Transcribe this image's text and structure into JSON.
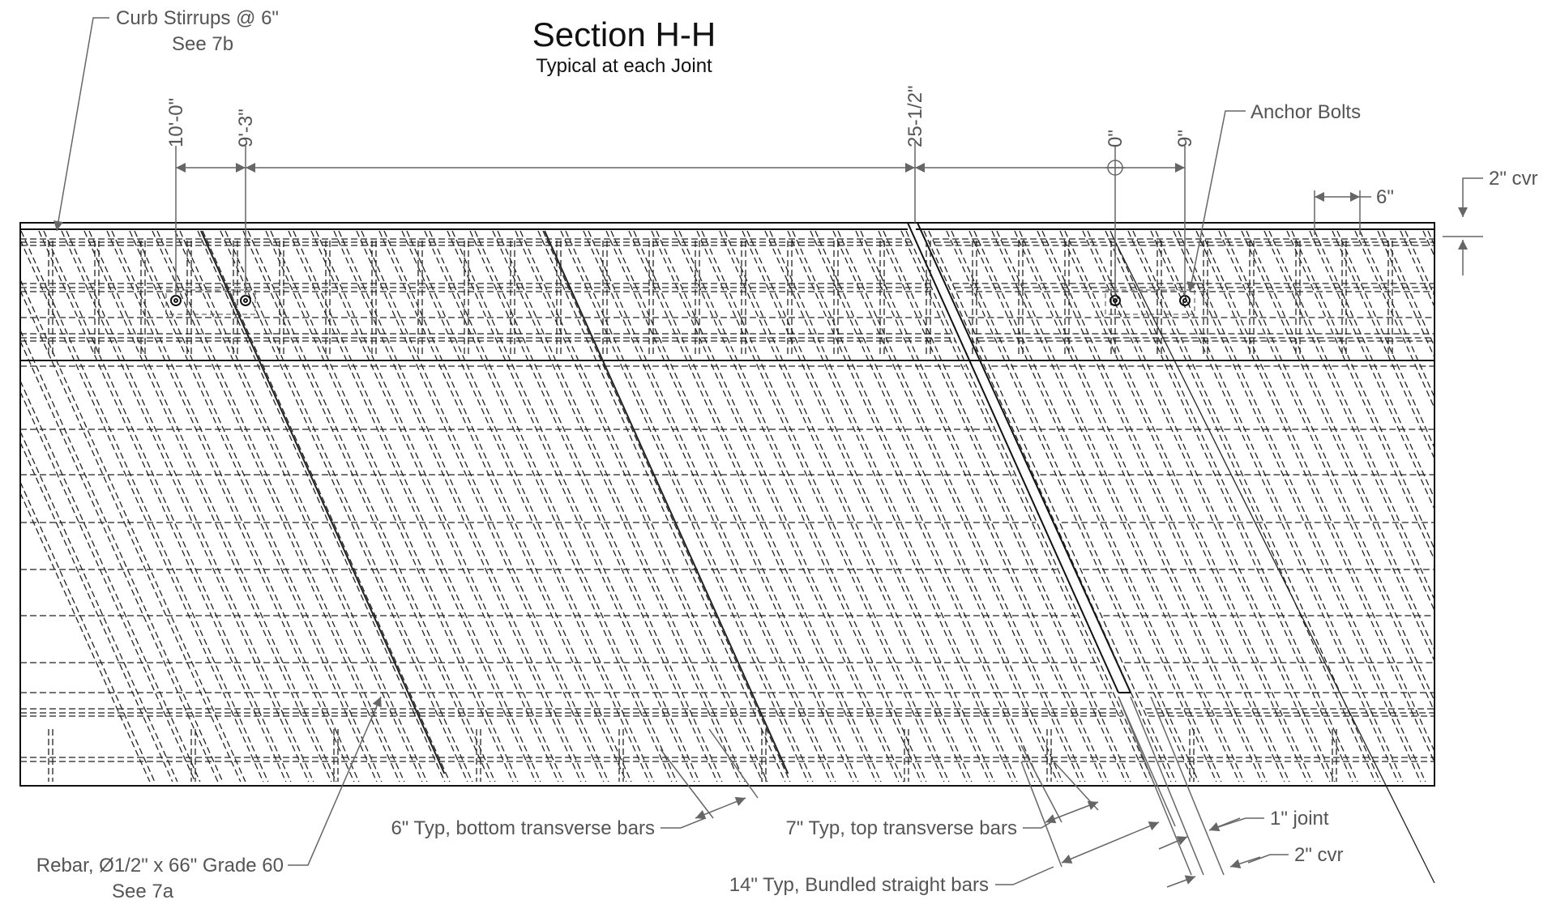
{
  "title": "Section H-H",
  "subtitle": "Typical at each Joint",
  "dimensions": {
    "d1": "10'-0\"",
    "d2": "9'-3\"",
    "d3": "25-1/2\"",
    "d4": "0\"",
    "d5": "9\""
  },
  "callouts": {
    "curb_stirrups": "Curb Stirrups @ 6\"",
    "curb_stirrups_ref": "See 7b",
    "anchor_bolts": "Anchor Bolts",
    "top_cover": "2\" cvr",
    "stirrup_spacing": "6\"",
    "bottom_transverse": "6\" Typ, bottom transverse bars",
    "top_transverse": "7\" Typ, top transverse bars",
    "joint": "1\" joint",
    "joint_cover": "2\" cvr",
    "bundled_bars": "14\" Typ, Bundled straight bars",
    "rebar": "Rebar, Ø1/2\" x 66\" Grade 60",
    "rebar_ref": "See 7a"
  },
  "colors": {
    "line": "#111111",
    "dash": "#222222",
    "leader": "#666666",
    "text": "#555555"
  }
}
